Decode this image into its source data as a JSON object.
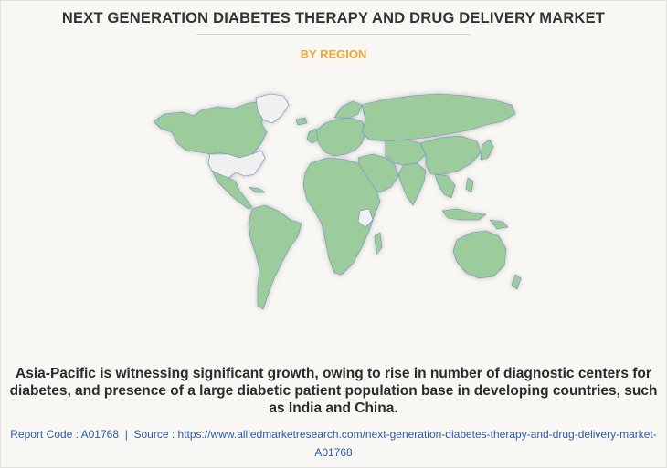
{
  "header": {
    "title": "NEXT GENERATION DIABETES THERAPY AND DRUG DELIVERY MARKET",
    "subtitle": "BY REGION"
  },
  "map": {
    "colors": {
      "region_fill": "#9ccc9c",
      "highlight_fill": "#f0f0f0",
      "border": "#6f8fc4",
      "ocean": "#f8f7f3"
    },
    "highlighted_countries": [
      "United States",
      "Greenland",
      "Kenya"
    ]
  },
  "summary": "Asia-Pacific is witnessing significant growth, owing to rise in number of diagnostic centers for diabetes, and presence of a large diabetic patient population base in developing countries, such as India and China.",
  "footer": {
    "report_code_label": "Report Code : A01768",
    "separator": "|",
    "source_label": "Source : ",
    "source_url": "https://www.alliedmarketresearch.com/next-generation-diabetes-therapy-and-drug-delivery-market-A01768"
  }
}
